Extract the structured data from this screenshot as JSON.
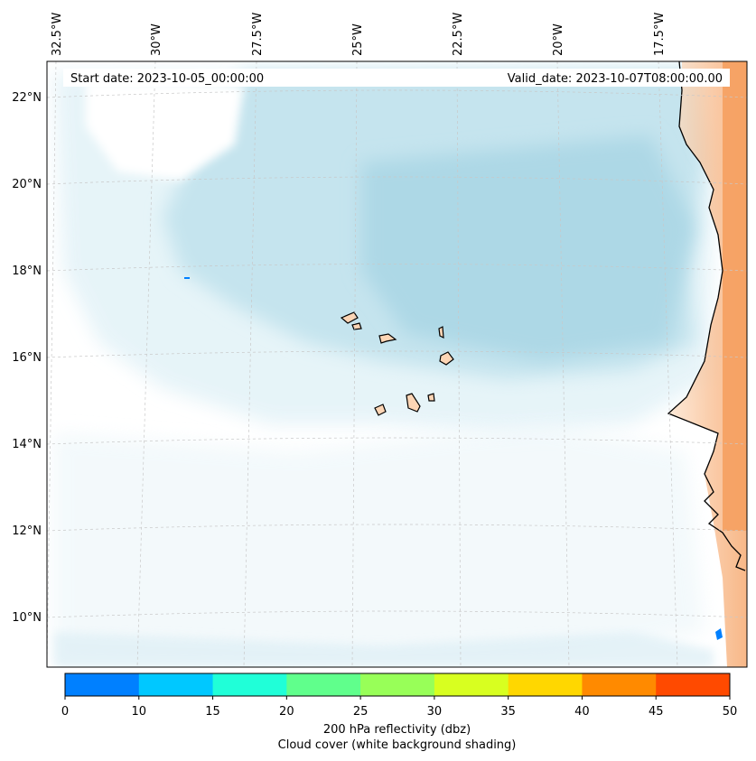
{
  "header": {
    "start_date": "Start date: 2023-10-05_00:00:00",
    "valid_date": "Valid_date: 2023-10-07T08:00:00.00"
  },
  "axes": {
    "lon_labels": [
      "32.5°W",
      "30°W",
      "27.5°W",
      "25°W",
      "22.5°W",
      "20°W",
      "17.5°W"
    ],
    "lat_labels": [
      "22°N",
      "20°N",
      "18°N",
      "16°N",
      "14°N",
      "12°N",
      "10°N"
    ],
    "gridlines": true
  },
  "colorbar": {
    "ticks": [
      "0",
      "10",
      "15",
      "20",
      "25",
      "30",
      "35",
      "40",
      "45",
      "50"
    ],
    "colors": [
      "#0080ff",
      "#00c8ff",
      "#20ffd8",
      "#60ff8c",
      "#98ff58",
      "#d8ff20",
      "#ffd700",
      "#ff8a00",
      "#ff4a00"
    ],
    "label": "200 hPa reflectivity (dbz)",
    "caption": "Cloud cover (white background shading)"
  },
  "colors": {
    "cloud": "#add8e6",
    "land_fill": "#fcd5b5",
    "land_warm": "#f5a060",
    "reflectivity_blue": "#0080ff"
  }
}
